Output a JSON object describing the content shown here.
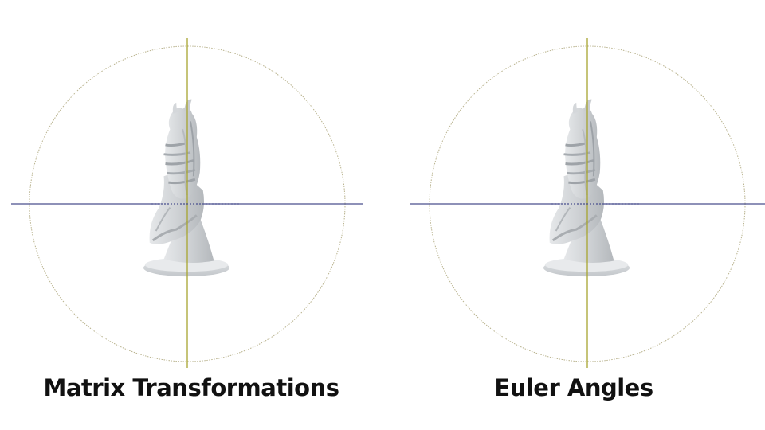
{
  "panels": [
    {
      "id": "matrix",
      "label": "Matrix Transformations"
    },
    {
      "id": "euler",
      "label": "Euler Angles"
    }
  ],
  "colors": {
    "background": "#ffffff",
    "gimbal_circle": "#b9b38e",
    "vertical_axis": "#a7a52f",
    "horizontal_axis": "#4a4f8e",
    "model_fill": "#d3d6d8",
    "model_shadow": "#a9adb1",
    "caption_text": "#111111"
  }
}
